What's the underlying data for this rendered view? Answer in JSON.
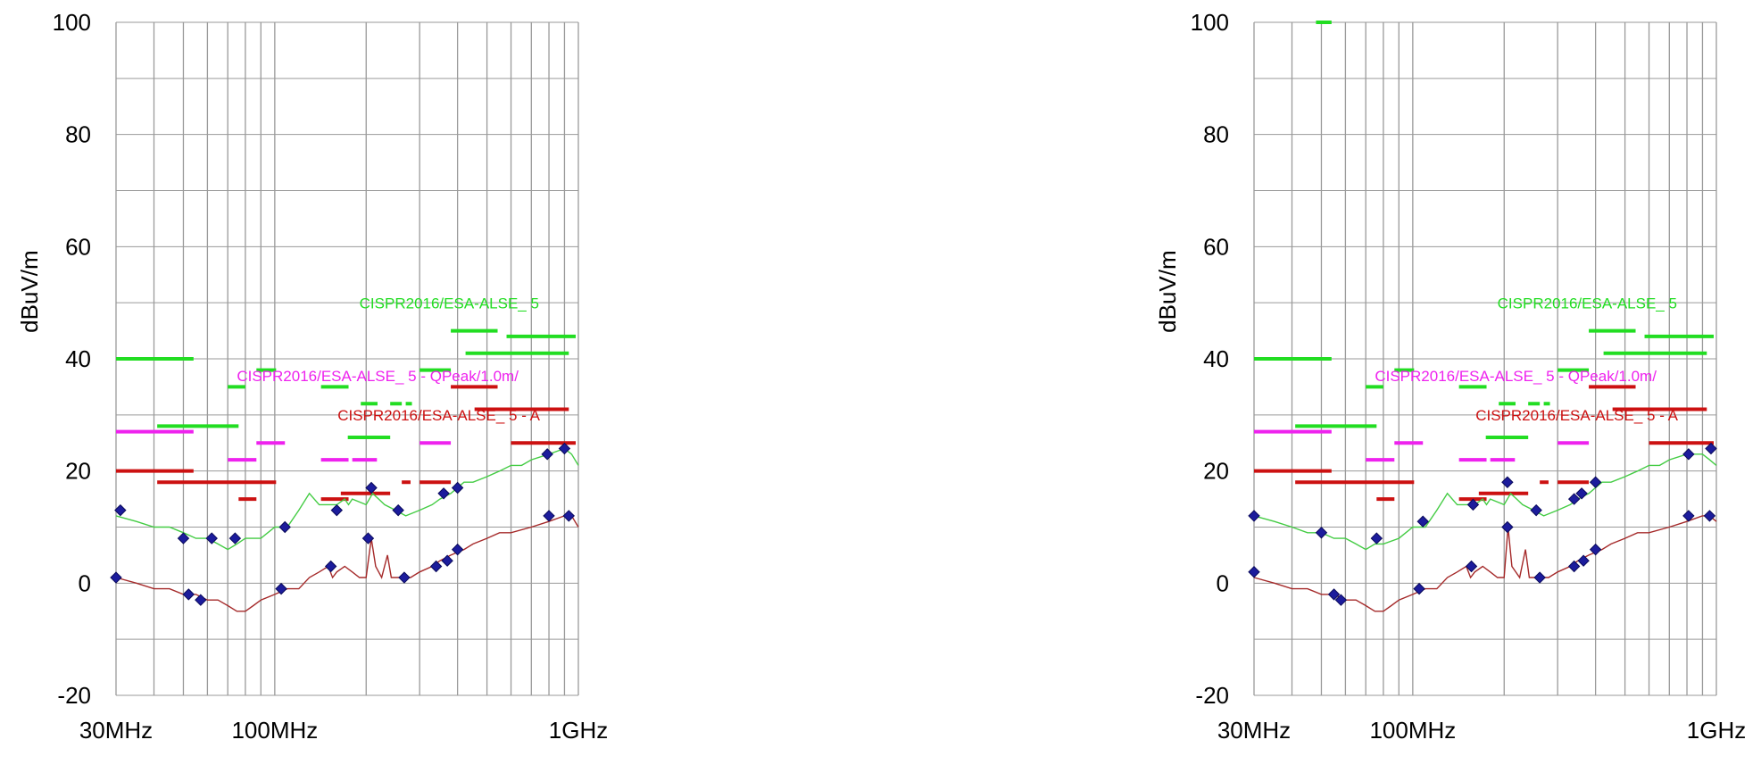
{
  "colors": {
    "peak_trace": "#44cc44",
    "avg_trace": "#a52a2a",
    "peak_limit": "#22dd22",
    "qpeak_limit": "#ee22ee",
    "avg_limit": "#cc1111",
    "marker": "#1c1c9c",
    "grid": "#9a9a9a"
  },
  "chart_data": [
    {
      "type": "line",
      "xscale": "log",
      "xlim": [
        30,
        1000
      ],
      "ylim": [
        -20,
        100
      ],
      "y_ticks": [
        -20,
        0,
        20,
        40,
        60,
        80,
        100
      ],
      "y_tick_labels": [
        "-20",
        "0",
        "20",
        "40",
        "60",
        "80",
        "100"
      ],
      "x_tick_labels": [
        "30MHz",
        "100MHz",
        "1GHz"
      ],
      "x_tick_values": [
        30,
        100,
        1000
      ],
      "ylabel": "dBuV/m",
      "xlabel": "",
      "grid": true,
      "limit_labels": [
        {
          "text": "CISPR2016/ESA-ALSE_ 5",
          "series": "peak",
          "x": 190,
          "y": 49
        },
        {
          "text": "CISPR2016/ESA-ALSE_ 5 - QPeak/1.0m/",
          "series": "qpeak",
          "x": 75,
          "y": 36
        },
        {
          "text": "CISPR2016/ESA-ALSE_ 5 - A",
          "series": "avg",
          "x": 161,
          "y": 29
        }
      ],
      "limits": {
        "peak": [
          [
            30,
            54,
            40
          ],
          [
            41,
            76,
            28
          ],
          [
            70,
            80,
            35
          ],
          [
            87,
            101,
            38
          ],
          [
            142,
            175,
            35
          ],
          [
            174,
            240,
            26
          ],
          [
            192,
            218,
            32
          ],
          [
            240,
            262,
            32
          ],
          [
            270,
            283,
            32
          ],
          [
            300,
            380,
            38
          ],
          [
            380,
            542,
            45
          ],
          [
            425,
            930,
            41
          ],
          [
            580,
            980,
            44
          ]
        ],
        "qpeak": [
          [
            30,
            54,
            27
          ],
          [
            70,
            87,
            22
          ],
          [
            87,
            108,
            25
          ],
          [
            142,
            175,
            22
          ],
          [
            180,
            217,
            22
          ],
          [
            300,
            380,
            25
          ]
        ],
        "avg": [
          [
            30,
            54,
            20
          ],
          [
            41,
            101,
            18
          ],
          [
            76,
            87,
            15
          ],
          [
            142,
            175,
            15
          ],
          [
            165,
            240,
            16
          ],
          [
            262,
            280,
            18
          ],
          [
            300,
            380,
            18
          ],
          [
            380,
            542,
            35
          ],
          [
            455,
            930,
            31
          ],
          [
            600,
            980,
            25
          ]
        ]
      },
      "peak_trace": [
        [
          30,
          12
        ],
        [
          35,
          11
        ],
        [
          40,
          10
        ],
        [
          45,
          10
        ],
        [
          50,
          9
        ],
        [
          55,
          8
        ],
        [
          60,
          8
        ],
        [
          65,
          7
        ],
        [
          70,
          6
        ],
        [
          75,
          7
        ],
        [
          80,
          8
        ],
        [
          90,
          8
        ],
        [
          100,
          10
        ],
        [
          110,
          10
        ],
        [
          120,
          13
        ],
        [
          130,
          16
        ],
        [
          140,
          14
        ],
        [
          150,
          14
        ],
        [
          160,
          14
        ],
        [
          170,
          15
        ],
        [
          175,
          14
        ],
        [
          180,
          15
        ],
        [
          200,
          14
        ],
        [
          210,
          16
        ],
        [
          220,
          15
        ],
        [
          230,
          14
        ],
        [
          250,
          13
        ],
        [
          270,
          12
        ],
        [
          300,
          13
        ],
        [
          330,
          14
        ],
        [
          350,
          15
        ],
        [
          380,
          16
        ],
        [
          420,
          18
        ],
        [
          450,
          18
        ],
        [
          500,
          19
        ],
        [
          550,
          20
        ],
        [
          600,
          21
        ],
        [
          650,
          21
        ],
        [
          700,
          22
        ],
        [
          800,
          23
        ],
        [
          900,
          24
        ],
        [
          950,
          23
        ],
        [
          1000,
          21
        ]
      ],
      "avg_trace": [
        [
          30,
          1
        ],
        [
          35,
          0
        ],
        [
          40,
          -1
        ],
        [
          45,
          -1
        ],
        [
          50,
          -2
        ],
        [
          55,
          -2
        ],
        [
          60,
          -3
        ],
        [
          65,
          -3
        ],
        [
          70,
          -4
        ],
        [
          75,
          -5
        ],
        [
          80,
          -5
        ],
        [
          85,
          -4
        ],
        [
          90,
          -3
        ],
        [
          100,
          -2
        ],
        [
          110,
          -1
        ],
        [
          120,
          -1
        ],
        [
          130,
          1
        ],
        [
          140,
          2
        ],
        [
          150,
          3
        ],
        [
          155,
          1
        ],
        [
          160,
          2
        ],
        [
          170,
          3
        ],
        [
          180,
          2
        ],
        [
          190,
          1
        ],
        [
          200,
          1
        ],
        [
          208,
          8
        ],
        [
          215,
          3
        ],
        [
          225,
          1
        ],
        [
          235,
          5
        ],
        [
          242,
          1
        ],
        [
          250,
          1
        ],
        [
          265,
          1
        ],
        [
          280,
          1
        ],
        [
          300,
          2
        ],
        [
          330,
          3
        ],
        [
          350,
          4
        ],
        [
          380,
          5
        ],
        [
          420,
          6
        ],
        [
          450,
          7
        ],
        [
          500,
          8
        ],
        [
          550,
          9
        ],
        [
          600,
          9
        ],
        [
          700,
          10
        ],
        [
          800,
          11
        ],
        [
          900,
          12
        ],
        [
          950,
          12
        ],
        [
          1000,
          10
        ]
      ],
      "peak_markers": [
        [
          31,
          13
        ],
        [
          50,
          8
        ],
        [
          62,
          8
        ],
        [
          74,
          8
        ],
        [
          108,
          10
        ],
        [
          160,
          13
        ],
        [
          208,
          17
        ],
        [
          255,
          13
        ],
        [
          360,
          16
        ],
        [
          400,
          17
        ],
        [
          790,
          23
        ],
        [
          900,
          24
        ]
      ],
      "avg_markers": [
        [
          30,
          1
        ],
        [
          52,
          -2
        ],
        [
          57,
          -3
        ],
        [
          105,
          -1
        ],
        [
          153,
          3
        ],
        [
          203,
          8
        ],
        [
          267,
          1
        ],
        [
          340,
          3
        ],
        [
          370,
          4
        ],
        [
          400,
          6
        ],
        [
          800,
          12
        ],
        [
          930,
          12
        ]
      ]
    },
    {
      "type": "line",
      "xscale": "log",
      "xlim": [
        30,
        1000
      ],
      "ylim": [
        -20,
        100
      ],
      "y_ticks": [
        -20,
        0,
        20,
        40,
        60,
        80,
        100
      ],
      "y_tick_labels": [
        "-20",
        "0",
        "20",
        "40",
        "60",
        "80",
        "100"
      ],
      "x_tick_labels": [
        "30MHz",
        "100MHz",
        "1GHz"
      ],
      "x_tick_values": [
        30,
        100,
        1000
      ],
      "ylabel": "dBuV/m",
      "xlabel": "",
      "grid": true,
      "limit_labels": [
        {
          "text": "CISPR2016/ESA-ALSE_ 5",
          "series": "peak",
          "x": 190,
          "y": 49
        },
        {
          "text": "CISPR2016/ESA-ALSE_ 5 - QPeak/1.0m/",
          "series": "qpeak",
          "x": 75,
          "y": 36
        },
        {
          "text": "CISPR2016/ESA-ALSE_ 5 - A",
          "series": "avg",
          "x": 161,
          "y": 29
        }
      ],
      "limits": {
        "peak": [
          [
            30,
            54,
            40
          ],
          [
            41,
            76,
            28
          ],
          [
            70,
            80,
            35
          ],
          [
            87,
            101,
            38
          ],
          [
            142,
            175,
            35
          ],
          [
            174,
            240,
            26
          ],
          [
            192,
            218,
            32
          ],
          [
            240,
            262,
            32
          ],
          [
            270,
            283,
            32
          ],
          [
            300,
            380,
            38
          ],
          [
            380,
            542,
            45
          ],
          [
            425,
            930,
            41
          ],
          [
            580,
            980,
            44
          ],
          [
            48,
            54,
            100
          ]
        ],
        "qpeak": [
          [
            30,
            54,
            27
          ],
          [
            70,
            87,
            22
          ],
          [
            87,
            108,
            25
          ],
          [
            142,
            175,
            22
          ],
          [
            180,
            217,
            22
          ],
          [
            300,
            380,
            25
          ]
        ],
        "avg": [
          [
            30,
            54,
            20
          ],
          [
            41,
            101,
            18
          ],
          [
            76,
            87,
            15
          ],
          [
            142,
            175,
            15
          ],
          [
            165,
            240,
            16
          ],
          [
            262,
            280,
            18
          ],
          [
            300,
            380,
            18
          ],
          [
            380,
            542,
            35
          ],
          [
            455,
            930,
            31
          ],
          [
            600,
            980,
            25
          ]
        ]
      },
      "peak_trace": [
        [
          30,
          12
        ],
        [
          35,
          11
        ],
        [
          40,
          10
        ],
        [
          45,
          9
        ],
        [
          50,
          9
        ],
        [
          55,
          8
        ],
        [
          60,
          8
        ],
        [
          65,
          7
        ],
        [
          70,
          6
        ],
        [
          75,
          7
        ],
        [
          80,
          7
        ],
        [
          90,
          8
        ],
        [
          100,
          10
        ],
        [
          110,
          10
        ],
        [
          120,
          13
        ],
        [
          130,
          16
        ],
        [
          140,
          14
        ],
        [
          150,
          14
        ],
        [
          160,
          14
        ],
        [
          170,
          15
        ],
        [
          175,
          14
        ],
        [
          180,
          15
        ],
        [
          200,
          14
        ],
        [
          210,
          16
        ],
        [
          220,
          15
        ],
        [
          230,
          14
        ],
        [
          250,
          13
        ],
        [
          270,
          12
        ],
        [
          300,
          13
        ],
        [
          330,
          14
        ],
        [
          350,
          15
        ],
        [
          380,
          16
        ],
        [
          420,
          18
        ],
        [
          450,
          18
        ],
        [
          500,
          19
        ],
        [
          550,
          20
        ],
        [
          600,
          21
        ],
        [
          650,
          21
        ],
        [
          700,
          22
        ],
        [
          800,
          23
        ],
        [
          900,
          23
        ],
        [
          950,
          22
        ],
        [
          1000,
          21
        ]
      ],
      "avg_trace": [
        [
          30,
          1
        ],
        [
          35,
          0
        ],
        [
          40,
          -1
        ],
        [
          45,
          -1
        ],
        [
          50,
          -2
        ],
        [
          55,
          -2
        ],
        [
          60,
          -3
        ],
        [
          65,
          -3
        ],
        [
          70,
          -4
        ],
        [
          75,
          -5
        ],
        [
          80,
          -5
        ],
        [
          85,
          -4
        ],
        [
          90,
          -3
        ],
        [
          100,
          -2
        ],
        [
          110,
          -1
        ],
        [
          120,
          -1
        ],
        [
          130,
          1
        ],
        [
          140,
          2
        ],
        [
          150,
          3
        ],
        [
          155,
          1
        ],
        [
          160,
          2
        ],
        [
          170,
          3
        ],
        [
          180,
          2
        ],
        [
          190,
          1
        ],
        [
          200,
          1
        ],
        [
          206,
          10
        ],
        [
          212,
          3
        ],
        [
          225,
          1
        ],
        [
          235,
          6
        ],
        [
          242,
          1
        ],
        [
          250,
          1
        ],
        [
          265,
          1
        ],
        [
          280,
          1
        ],
        [
          300,
          2
        ],
        [
          330,
          3
        ],
        [
          350,
          4
        ],
        [
          380,
          5
        ],
        [
          420,
          6
        ],
        [
          450,
          7
        ],
        [
          500,
          8
        ],
        [
          550,
          9
        ],
        [
          600,
          9
        ],
        [
          700,
          10
        ],
        [
          800,
          11
        ],
        [
          900,
          12
        ],
        [
          950,
          12
        ],
        [
          1000,
          11
        ]
      ],
      "peak_markers": [
        [
          30,
          12
        ],
        [
          50,
          9
        ],
        [
          76,
          8
        ],
        [
          108,
          11
        ],
        [
          158,
          14
        ],
        [
          205,
          18
        ],
        [
          255,
          13
        ],
        [
          340,
          15
        ],
        [
          360,
          16
        ],
        [
          400,
          18
        ],
        [
          810,
          23
        ],
        [
          960,
          24
        ]
      ],
      "avg_markers": [
        [
          30,
          2
        ],
        [
          55,
          -2
        ],
        [
          58,
          -3
        ],
        [
          105,
          -1
        ],
        [
          156,
          3
        ],
        [
          205,
          10
        ],
        [
          262,
          1
        ],
        [
          340,
          3
        ],
        [
          365,
          4
        ],
        [
          400,
          6
        ],
        [
          810,
          12
        ],
        [
          950,
          12
        ]
      ]
    }
  ]
}
